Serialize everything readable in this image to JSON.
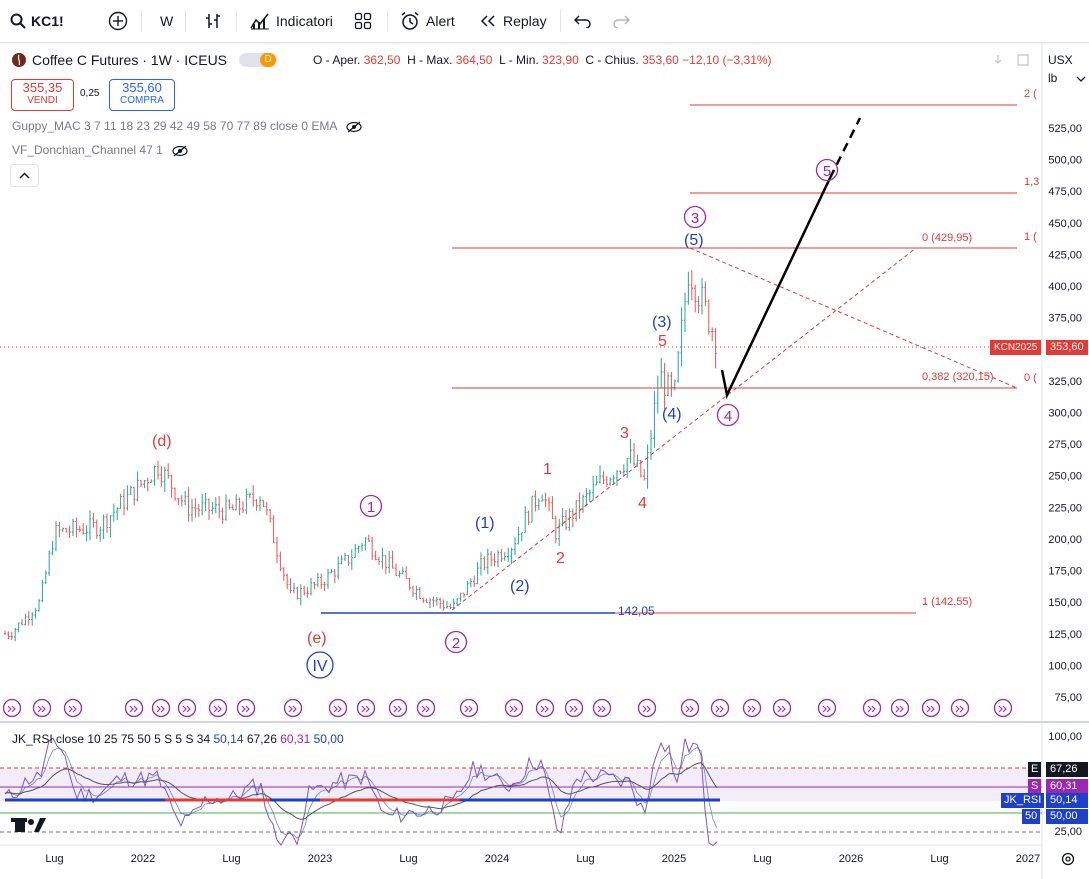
{
  "toolbar": {
    "symbol": "KC1!",
    "interval": "W",
    "indicators": "Indicatori",
    "alert": "Alert",
    "replay": "Replay"
  },
  "legend": {
    "title": "Coffee C Futures · 1W · ICEUS",
    "d_badge": "D",
    "o_label": "O - Aper.",
    "o_val": "362,50",
    "h_label": "H - Max.",
    "h_val": "364,50",
    "l_label": "L - Min.",
    "l_val": "323,90",
    "c_label": "C - Chius.",
    "c_val": "353,60",
    "change": "−12,10 (−3,31%)",
    "sell_price": "355,35",
    "sell_label": "VENDI",
    "spread": "0,25",
    "buy_price": "355,60",
    "buy_label": "COMPRA",
    "ind1": "Guppy_MAC 3 7 11 18 23 29 42 49 58 70 77 89 close 0 EMA",
    "ind2": "VF_Donchian_Channel 47 1",
    "rsi_label": "JK_RSI close 10 25 75 50 5 S 5 S 34",
    "rsi_v1": "50,14",
    "rsi_v2": "67,26",
    "rsi_v3": "60,31",
    "rsi_v4": "50,00"
  },
  "axis": {
    "currency": "USX",
    "unit": "lb",
    "badge_symbol": "KCN2025",
    "badge_price": "353,60",
    "rsi_badges": [
      {
        "tag": "E",
        "val": "67,26"
      },
      {
        "tag": "S",
        "val": "60,31"
      },
      {
        "tag": "JK_RSI",
        "val": "50,14"
      },
      {
        "tag": "50",
        "val": "50,00"
      }
    ]
  },
  "chart_data": {
    "type": "candlestick",
    "title": "Coffee C Futures · 1W · ICEUS",
    "ylabel": "USX/lb",
    "ylim": [
      60,
      550
    ],
    "y_ticks": [
      "525,00",
      "500,00",
      "475,00",
      "450,00",
      "425,00",
      "400,00",
      "375,00",
      "350,00",
      "325,00",
      "300,00",
      "275,00",
      "250,00",
      "225,00",
      "200,00",
      "175,00",
      "150,00",
      "125,00",
      "100,00",
      "75,00"
    ],
    "x_ticks": [
      "Lug",
      "2022",
      "Lug",
      "2023",
      "Lug",
      "2024",
      "Lug",
      "2025",
      "Lug",
      "2026",
      "Lug",
      "2027"
    ],
    "price_path": [
      {
        "x": "2021-04",
        "y": 125
      },
      {
        "x": "2021-06",
        "y": 150
      },
      {
        "x": "2021-07",
        "y": 205
      },
      {
        "x": "2021-10",
        "y": 210
      },
      {
        "x": "2022-01",
        "y": 245
      },
      {
        "x": "2022-02",
        "y": 258
      },
      {
        "x": "2022-04",
        "y": 225
      },
      {
        "x": "2022-07",
        "y": 222
      },
      {
        "x": "2022-09",
        "y": 235
      },
      {
        "x": "2022-11",
        "y": 155
      },
      {
        "x": "2023-01",
        "y": 165
      },
      {
        "x": "2023-03",
        "y": 185
      },
      {
        "x": "2023-04",
        "y": 200
      },
      {
        "x": "2023-06",
        "y": 175
      },
      {
        "x": "2023-08",
        "y": 155
      },
      {
        "x": "2023-10",
        "y": 145
      },
      {
        "x": "2023-12",
        "y": 180
      },
      {
        "x": "2024-02",
        "y": 195
      },
      {
        "x": "2024-04",
        "y": 240
      },
      {
        "x": "2024-05",
        "y": 205
      },
      {
        "x": "2024-08",
        "y": 245
      },
      {
        "x": "2024-10",
        "y": 265
      },
      {
        "x": "2024-11",
        "y": 245
      },
      {
        "x": "2024-12",
        "y": 330
      },
      {
        "x": "2025-01",
        "y": 310
      },
      {
        "x": "2025-02",
        "y": 415
      },
      {
        "x": "2025-03",
        "y": 385
      },
      {
        "x": "2025-04",
        "y": 353.6
      }
    ],
    "fib_levels": [
      {
        "label": "0 (429,95)",
        "y": 429.95
      },
      {
        "label": "0,382 (320,15)",
        "y": 320.15
      },
      {
        "label": "1 (142,55)",
        "y": 142.55
      },
      {
        "label": "2 (",
        "y": null
      },
      {
        "label": "1,3",
        "y": null
      },
      {
        "label": "1 (",
        "y": null
      },
      {
        "label": "0 (",
        "y": null
      }
    ],
    "support_line": {
      "label": "142,05",
      "y": 142.05
    },
    "current_price": 353.6,
    "projection": [
      {
        "x": "2025-04",
        "y": 320
      },
      {
        "x": "2025-12",
        "y": 490
      },
      {
        "x": "2026-01",
        "y": 520
      }
    ],
    "wave_labels": [
      {
        "text": "(d)",
        "color": "red"
      },
      {
        "text": "(e)",
        "color": "red"
      },
      {
        "text": "IV",
        "color": "blue"
      },
      {
        "text": "1",
        "color": "purple"
      },
      {
        "text": "2",
        "color": "purple"
      },
      {
        "text": "3",
        "color": "purple"
      },
      {
        "text": "4",
        "color": "purple"
      },
      {
        "text": "5",
        "color": "purple"
      },
      {
        "text": "(1)",
        "color": "blue"
      },
      {
        "text": "(2)",
        "color": "blue"
      },
      {
        "text": "(3)",
        "color": "blue"
      },
      {
        "text": "(4)",
        "color": "blue"
      },
      {
        "text": "(5)",
        "color": "blue"
      },
      {
        "text": "1",
        "color": "red"
      },
      {
        "text": "2",
        "color": "red"
      },
      {
        "text": "3",
        "color": "red"
      },
      {
        "text": "4",
        "color": "red"
      },
      {
        "text": "5",
        "color": "red"
      }
    ],
    "rsi": {
      "ylim": [
        0,
        100
      ],
      "y_ticks": [
        "100,00",
        "75,00",
        "50,00",
        "25,00"
      ],
      "levels": {
        "E": 67.26,
        "S": 60.31,
        "JK_RSI": 50.14,
        "mid": 50.0
      }
    }
  }
}
